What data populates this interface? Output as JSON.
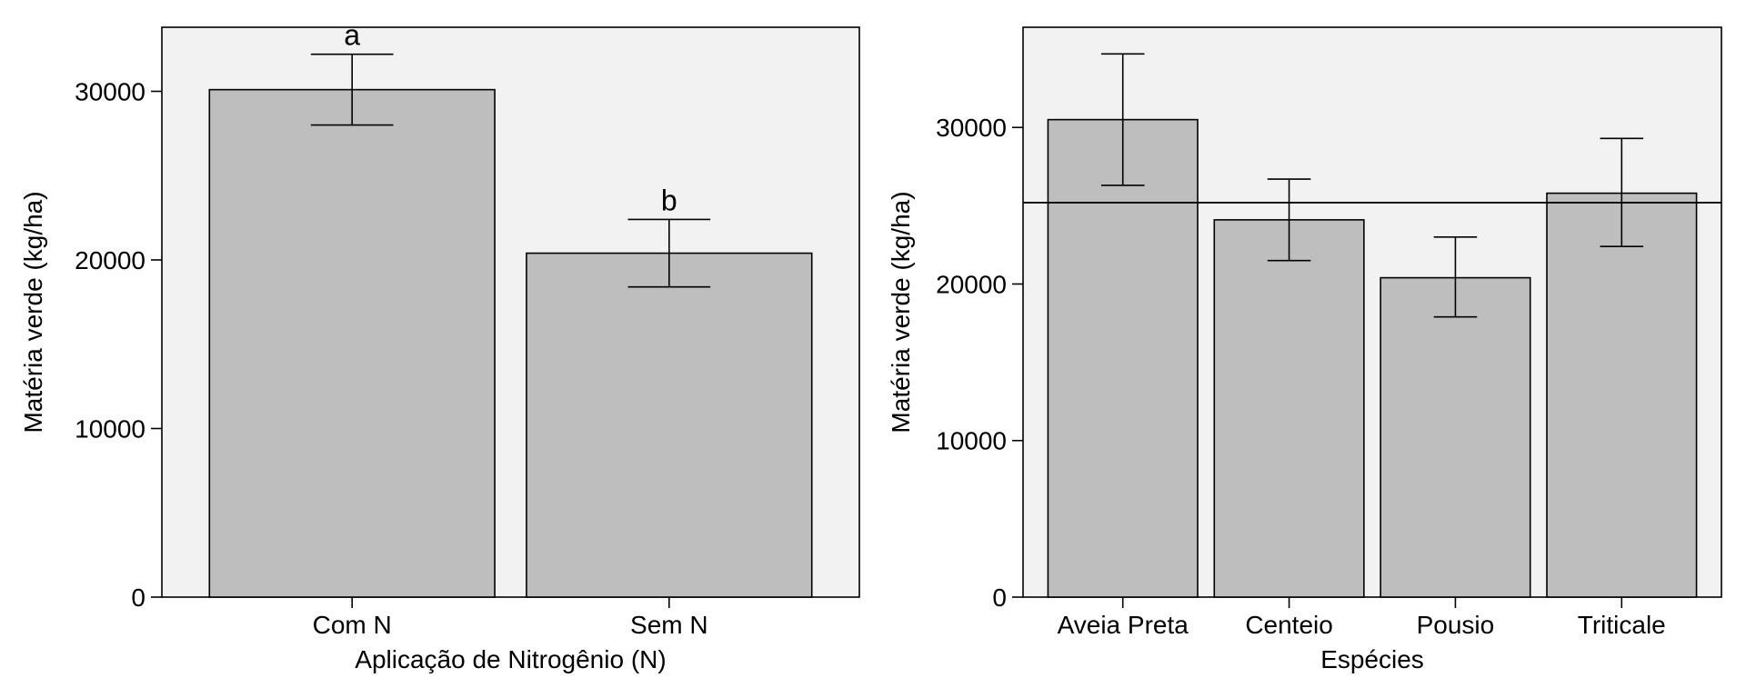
{
  "chart_data": [
    {
      "type": "bar",
      "categories": [
        "Com N",
        "Sem N"
      ],
      "values": [
        30100,
        20400
      ],
      "error_low": [
        28000,
        18400
      ],
      "error_high": [
        32200,
        22400
      ],
      "letters": [
        "a",
        "b"
      ],
      "xlabel": "Aplicação de Nitrogênio (N)",
      "ylabel": "Matéria verde (kg/ha)",
      "ylim": [
        0,
        33800
      ],
      "yticks": [
        0,
        10000,
        20000,
        30000
      ],
      "grid": false
    },
    {
      "type": "bar",
      "categories": [
        "Aveia Preta",
        "Centeio",
        "Pousio",
        "Triticale"
      ],
      "values": [
        30500,
        24100,
        20400,
        25800
      ],
      "error_low": [
        26300,
        21500,
        17900,
        22400
      ],
      "error_high": [
        34700,
        26700,
        23000,
        29300
      ],
      "reference_line": 25200,
      "xlabel": "Espécies",
      "ylabel": "Matéria verde (kg/ha)",
      "ylim": [
        0,
        36400
      ],
      "yticks": [
        0,
        10000,
        20000,
        30000
      ],
      "grid": false
    }
  ]
}
